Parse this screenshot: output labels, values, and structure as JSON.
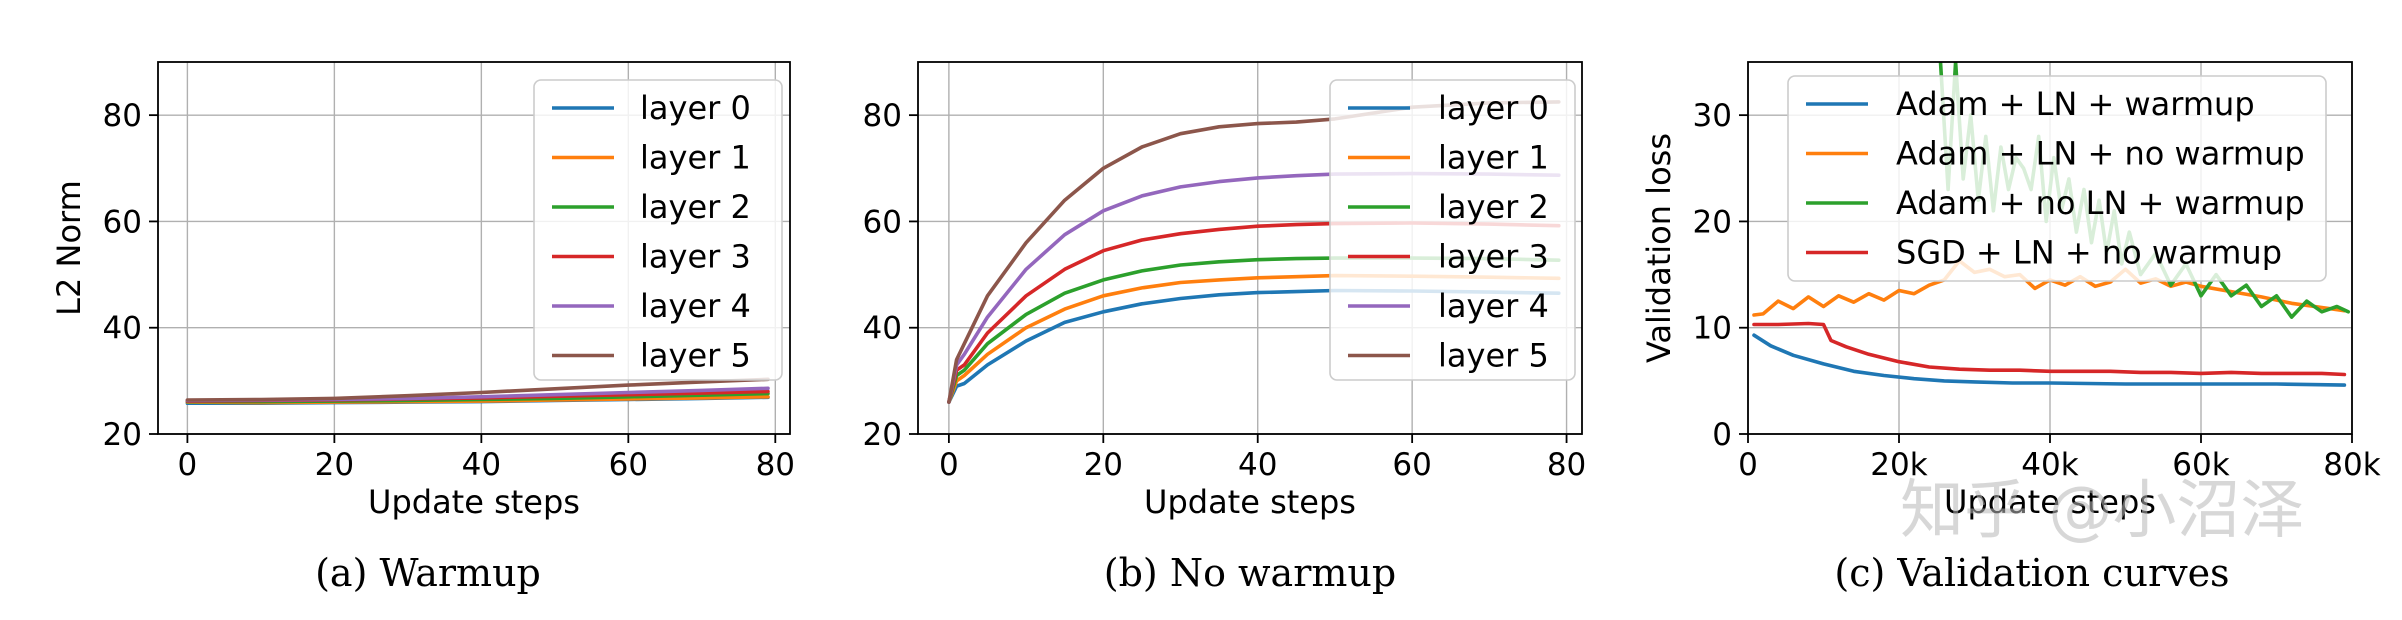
{
  "watermark": "知乎 @小沼泽",
  "chart_data": [
    {
      "type": "line",
      "caption": "(a)  Warmup",
      "xlabel": "Update steps",
      "ylabel": "L2 Norm",
      "xlim": [
        -4,
        82
      ],
      "ylim": [
        20,
        90
      ],
      "xticks": [
        0,
        20,
        40,
        60,
        80
      ],
      "yticks": [
        20,
        40,
        60,
        80
      ],
      "grid": true,
      "legend": "upper right",
      "series": [
        {
          "name": "layer 0",
          "color": "#1f77b4",
          "x": [
            0,
            10,
            20,
            30,
            40,
            50,
            60,
            70,
            79
          ],
          "y": [
            25.8,
            25.8,
            25.9,
            26.0,
            26.1,
            26.3,
            26.5,
            26.7,
            26.9
          ]
        },
        {
          "name": "layer 1",
          "color": "#ff7f0e",
          "x": [
            0,
            10,
            20,
            30,
            40,
            50,
            60,
            70,
            79
          ],
          "y": [
            26.0,
            25.9,
            26.0,
            26.1,
            26.2,
            26.4,
            26.6,
            26.8,
            27.0
          ]
        },
        {
          "name": "layer 2",
          "color": "#2ca02c",
          "x": [
            0,
            10,
            20,
            30,
            40,
            50,
            60,
            70,
            79
          ],
          "y": [
            26.1,
            26.1,
            26.2,
            26.3,
            26.5,
            26.7,
            27.0,
            27.3,
            27.6
          ]
        },
        {
          "name": "layer 3",
          "color": "#d62728",
          "x": [
            0,
            10,
            20,
            30,
            40,
            50,
            60,
            70,
            79
          ],
          "y": [
            26.2,
            26.3,
            26.4,
            26.6,
            26.8,
            27.1,
            27.4,
            27.7,
            28.0
          ]
        },
        {
          "name": "layer 4",
          "color": "#9467bd",
          "x": [
            0,
            10,
            20,
            30,
            40,
            50,
            60,
            70,
            79
          ],
          "y": [
            26.3,
            26.4,
            26.5,
            26.7,
            27.0,
            27.4,
            27.8,
            28.2,
            28.6
          ]
        },
        {
          "name": "layer 5",
          "color": "#8c564b",
          "x": [
            0,
            10,
            20,
            30,
            40,
            50,
            60,
            70,
            79
          ],
          "y": [
            26.4,
            26.5,
            26.7,
            27.2,
            27.8,
            28.5,
            29.2,
            29.8,
            30.3
          ]
        }
      ]
    },
    {
      "type": "line",
      "caption": "(b)  No warmup",
      "xlabel": "Update steps",
      "ylabel": "",
      "xlim": [
        -4,
        82
      ],
      "ylim": [
        20,
        90
      ],
      "xticks": [
        0,
        20,
        40,
        60,
        80
      ],
      "yticks": [
        20,
        40,
        60,
        80
      ],
      "grid": true,
      "legend": "upper right",
      "series": [
        {
          "name": "layer 0",
          "color": "#1f77b4",
          "x": [
            0,
            1,
            2,
            5,
            10,
            15,
            20,
            25,
            30,
            35,
            40,
            45,
            50,
            60,
            70,
            79
          ],
          "y": [
            26,
            29,
            29.5,
            33,
            37.5,
            41,
            43,
            44.5,
            45.5,
            46.2,
            46.6,
            46.8,
            47,
            46.9,
            46.7,
            46.5
          ]
        },
        {
          "name": "layer 1",
          "color": "#ff7f0e",
          "x": [
            0,
            1,
            2,
            5,
            10,
            15,
            20,
            25,
            30,
            35,
            40,
            45,
            50,
            60,
            70,
            79
          ],
          "y": [
            26,
            30,
            31,
            35,
            40,
            43.5,
            46,
            47.5,
            48.5,
            49,
            49.4,
            49.6,
            49.8,
            49.7,
            49.5,
            49.3
          ]
        },
        {
          "name": "layer 2",
          "color": "#2ca02c",
          "x": [
            0,
            1,
            2,
            5,
            10,
            15,
            20,
            25,
            30,
            35,
            40,
            45,
            50,
            60,
            70,
            79
          ],
          "y": [
            26,
            31,
            32,
            37,
            42.5,
            46.5,
            49,
            50.7,
            51.8,
            52.4,
            52.8,
            53,
            53.1,
            53.1,
            53,
            52.7
          ]
        },
        {
          "name": "layer 3",
          "color": "#d62728",
          "x": [
            0,
            1,
            2,
            5,
            10,
            15,
            20,
            25,
            30,
            35,
            40,
            45,
            50,
            60,
            70,
            79
          ],
          "y": [
            26,
            32,
            33,
            39,
            46,
            51,
            54.5,
            56.5,
            57.7,
            58.5,
            59.1,
            59.4,
            59.6,
            59.7,
            59.5,
            59.2
          ]
        },
        {
          "name": "layer 4",
          "color": "#9467bd",
          "x": [
            0,
            1,
            2,
            5,
            10,
            15,
            20,
            25,
            30,
            35,
            40,
            45,
            50,
            60,
            70,
            79
          ],
          "y": [
            26,
            33,
            35,
            42,
            51,
            57.5,
            62,
            64.8,
            66.5,
            67.5,
            68.2,
            68.6,
            68.9,
            69,
            68.9,
            68.7
          ]
        },
        {
          "name": "layer 5",
          "color": "#8c564b",
          "x": [
            0,
            1,
            2,
            5,
            10,
            15,
            20,
            25,
            30,
            35,
            40,
            45,
            50,
            60,
            70,
            79
          ],
          "y": [
            26,
            34,
            37,
            46,
            56,
            64,
            70,
            74,
            76.5,
            77.8,
            78.4,
            78.7,
            79.3,
            81.5,
            82.3,
            82.5
          ]
        }
      ]
    },
    {
      "type": "line",
      "caption": "(c)  Validation curves",
      "xlabel": "Update steps",
      "ylabel": "Validation loss",
      "xlim": [
        0,
        80000
      ],
      "ylim": [
        0,
        35
      ],
      "xticks": [
        0,
        20000,
        40000,
        60000,
        80000
      ],
      "xtick_labels": [
        "0",
        "20k",
        "40k",
        "60k",
        "80k"
      ],
      "yticks": [
        0,
        10,
        20,
        30
      ],
      "grid": true,
      "legend": "upper right",
      "series": [
        {
          "name": "Adam + LN + warmup",
          "color": "#1f77b4",
          "x": [
            800,
            3000,
            6000,
            10000,
            14000,
            18000,
            22000,
            26000,
            30000,
            35000,
            40000,
            50000,
            60000,
            70000,
            79000
          ],
          "y": [
            9.3,
            8.3,
            7.4,
            6.6,
            5.9,
            5.5,
            5.2,
            5.0,
            4.9,
            4.8,
            4.8,
            4.7,
            4.7,
            4.7,
            4.6
          ]
        },
        {
          "name": "Adam + LN + no warmup",
          "color": "#ff7f0e",
          "x": [
            800,
            2000,
            4000,
            6000,
            8000,
            10000,
            12000,
            14000,
            16000,
            18000,
            20000,
            22000,
            24000,
            26000,
            28000,
            30000,
            32000,
            34000,
            36000,
            38000,
            40000,
            42000,
            44000,
            46000,
            48000,
            50000,
            52000,
            54000,
            56000,
            58000,
            60000,
            64000,
            68000,
            72000,
            76000,
            79000
          ],
          "y": [
            11.2,
            11.3,
            12.5,
            11.8,
            12.9,
            12.0,
            13.0,
            12.4,
            13.2,
            12.6,
            13.5,
            13.2,
            14.0,
            14.5,
            16.3,
            15.2,
            15.5,
            14.8,
            15.0,
            13.7,
            14.5,
            14.0,
            14.8,
            13.9,
            14.3,
            15.5,
            14.2,
            14.6,
            13.9,
            14.3,
            13.9,
            13.4,
            12.9,
            12.3,
            11.9,
            11.6
          ]
        },
        {
          "name": "Adam + no LN + warmup",
          "color": "#2ca02c",
          "x": [
            25500,
            26500,
            27500,
            28500,
            29500,
            30500,
            31500,
            32500,
            33500,
            34500,
            35500,
            36500,
            37500,
            38500,
            39500,
            40500,
            41500,
            42500,
            43500,
            44500,
            45500,
            46500,
            47500,
            48500,
            49500,
            50500,
            52000,
            54000,
            56000,
            58000,
            60000,
            62000,
            64000,
            66000,
            68000,
            70000,
            72000,
            74000,
            76000,
            78000,
            79500
          ],
          "y": [
            35,
            23,
            35,
            24,
            30,
            22,
            28,
            21,
            27,
            23,
            26,
            25,
            23,
            28,
            20,
            26,
            21,
            24,
            19,
            23,
            18,
            22,
            17,
            21,
            16,
            19,
            15,
            17,
            14,
            16,
            13,
            15,
            13,
            14,
            12,
            13,
            11,
            12.5,
            11.5,
            12,
            11.5
          ]
        },
        {
          "name": "SGD + LN + no warmup",
          "color": "#d62728",
          "x": [
            800,
            4000,
            8000,
            10000,
            11000,
            13000,
            16000,
            20000,
            24000,
            28000,
            32000,
            36000,
            40000,
            44000,
            48000,
            52000,
            56000,
            60000,
            64000,
            68000,
            72000,
            76000,
            79000
          ],
          "y": [
            10.3,
            10.3,
            10.4,
            10.3,
            8.8,
            8.2,
            7.5,
            6.8,
            6.3,
            6.1,
            6.0,
            6.0,
            5.9,
            5.9,
            5.9,
            5.8,
            5.8,
            5.7,
            5.8,
            5.7,
            5.7,
            5.7,
            5.6
          ]
        }
      ]
    }
  ]
}
